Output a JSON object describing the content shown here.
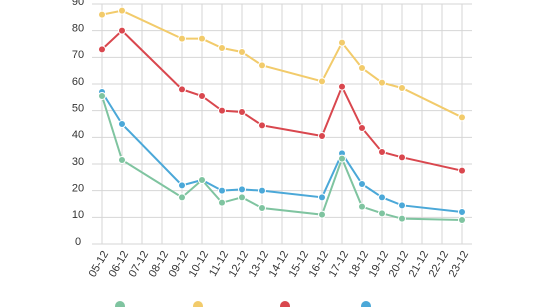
{
  "chart_data": {
    "type": "line",
    "categories": [
      "05-12",
      "06-12",
      "07-12",
      "08-12",
      "09-12",
      "10-12",
      "11-12",
      "12-12",
      "13-12",
      "14-12",
      "15-12",
      "16-12",
      "17-12",
      "18-12",
      "19-12",
      "20-12",
      "21-12",
      "22-12",
      "23-12"
    ],
    "ylim": [
      0,
      90
    ],
    "yticks": [
      0,
      10,
      20,
      30,
      40,
      50,
      60,
      70,
      80,
      90
    ],
    "grid": true,
    "series": [
      {
        "color": "#f2cb6b",
        "x": [
          "05-12",
          "06-12",
          "09-12",
          "10-12",
          "11-12",
          "12-12",
          "13-12",
          "16-12",
          "17-12",
          "18-12",
          "19-12",
          "20-12",
          "23-12"
        ],
        "values": [
          86,
          87.5,
          77,
          77,
          73.5,
          72,
          67,
          61,
          75.5,
          66,
          60.5,
          58.5,
          47.5
        ]
      },
      {
        "color": "#d9474e",
        "x": [
          "05-12",
          "06-12",
          "09-12",
          "10-12",
          "11-12",
          "12-12",
          "13-12",
          "16-12",
          "17-12",
          "18-12",
          "19-12",
          "20-12",
          "23-12"
        ],
        "values": [
          73,
          80,
          58,
          55.5,
          50,
          49.5,
          44.5,
          40.5,
          59,
          43.5,
          34.5,
          32.5,
          27.5
        ]
      },
      {
        "color": "#4ba8d8",
        "x": [
          "05-12",
          "06-12",
          "09-12",
          "10-12",
          "11-12",
          "12-12",
          "13-12",
          "16-12",
          "17-12",
          "18-12",
          "19-12",
          "20-12",
          "23-12"
        ],
        "values": [
          57,
          45,
          22,
          24,
          20,
          20.5,
          20,
          17.5,
          34,
          22.5,
          17.5,
          14.5,
          12
        ]
      },
      {
        "color": "#7fc4a0",
        "x": [
          "05-12",
          "06-12",
          "09-12",
          "10-12",
          "11-12",
          "12-12",
          "13-12",
          "16-12",
          "17-12",
          "18-12",
          "19-12",
          "20-12",
          "23-12"
        ],
        "values": [
          55.5,
          31.5,
          17.5,
          24,
          15.5,
          17.5,
          13.5,
          11,
          32,
          14,
          11.5,
          9.5,
          9
        ]
      }
    ]
  }
}
